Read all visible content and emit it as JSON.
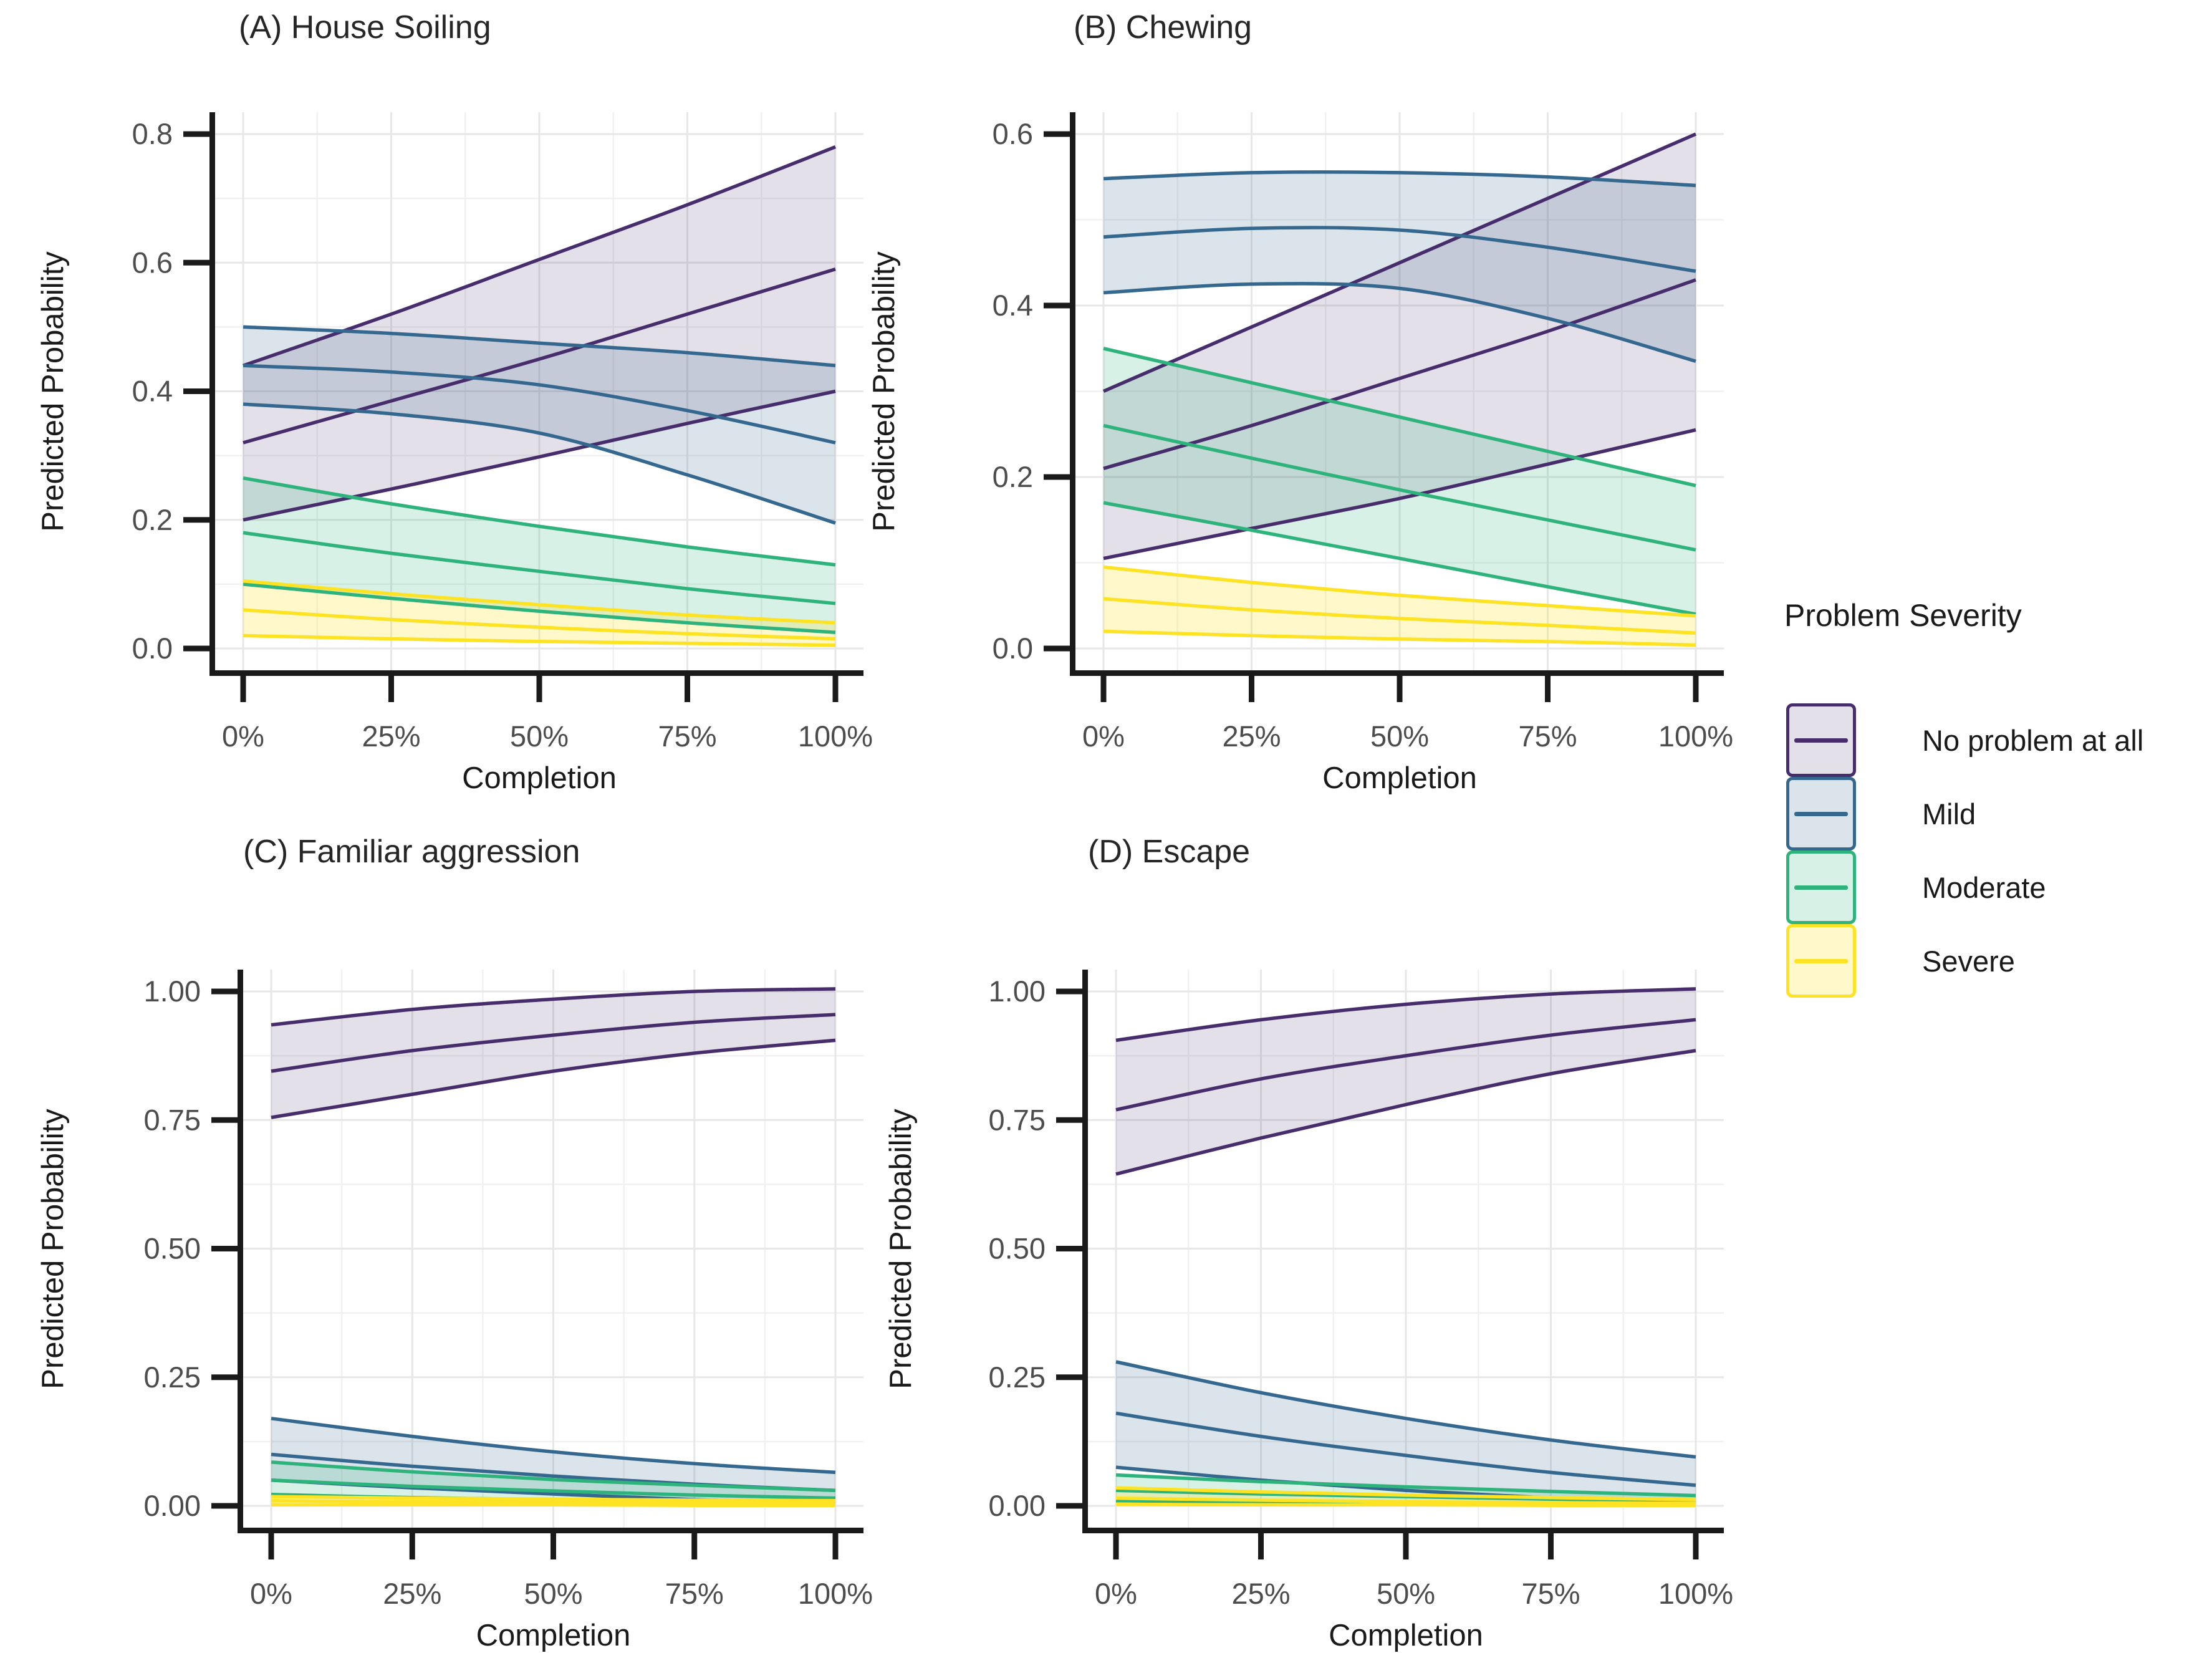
{
  "figure": {
    "background": "#ffffff"
  },
  "legend": {
    "title": "Problem Severity",
    "items": [
      {
        "label": "No problem at all",
        "line_color": "#472d6b",
        "fill_color": "rgba(71,45,107,0.15)"
      },
      {
        "label": "Mild",
        "line_color": "#35688e",
        "fill_color": "rgba(53,104,142,0.18)"
      },
      {
        "label": "Moderate",
        "line_color": "#2eb37c",
        "fill_color": "rgba(46,179,124,0.19)"
      },
      {
        "label": "Severe",
        "line_color": "#fde324",
        "fill_color": "rgba(253,227,36,0.24)"
      }
    ]
  },
  "chart_data": [
    {
      "id": "A",
      "type": "line",
      "title": "(A) House Soiling",
      "xlabel": "Completion",
      "ylabel": "Predicted Probability",
      "x": [
        0,
        25,
        50,
        75,
        100
      ],
      "xtick_labels": [
        "0%",
        "25%",
        "50%",
        "75%",
        "100%"
      ],
      "ytick_values": [
        0,
        0.2,
        0.4,
        0.6,
        0.8
      ],
      "ytick_labels": [
        "0.0",
        "0.2",
        "0.4",
        "0.6",
        "0.8"
      ],
      "y_top": 0.8,
      "y_minor_step": 0.1,
      "grid": true,
      "legend_position": "right",
      "series": [
        {
          "name": "No problem at all",
          "upper": [
            0.44,
            0.52,
            0.605,
            0.69,
            0.78
          ],
          "mid": [
            0.32,
            0.385,
            0.45,
            0.52,
            0.59
          ],
          "lower": [
            0.2,
            0.248,
            0.298,
            0.35,
            0.4
          ]
        },
        {
          "name": "Mild",
          "upper": [
            0.5,
            0.49,
            0.475,
            0.46,
            0.44
          ],
          "mid": [
            0.44,
            0.43,
            0.41,
            0.37,
            0.32
          ],
          "lower": [
            0.38,
            0.365,
            0.335,
            0.27,
            0.195
          ]
        },
        {
          "name": "Moderate",
          "upper": [
            0.265,
            0.225,
            0.19,
            0.158,
            0.13
          ],
          "mid": [
            0.18,
            0.148,
            0.12,
            0.093,
            0.07
          ],
          "lower": [
            0.1,
            0.078,
            0.058,
            0.04,
            0.025
          ]
        },
        {
          "name": "Severe",
          "upper": [
            0.105,
            0.085,
            0.068,
            0.052,
            0.04
          ],
          "mid": [
            0.06,
            0.045,
            0.033,
            0.023,
            0.015
          ],
          "lower": [
            0.02,
            0.015,
            0.011,
            0.008,
            0.005
          ]
        }
      ]
    },
    {
      "id": "B",
      "type": "line",
      "title": "(B) Chewing",
      "xlabel": "Completion",
      "ylabel": "Predicted Probability",
      "x": [
        0,
        25,
        50,
        75,
        100
      ],
      "xtick_labels": [
        "0%",
        "25%",
        "50%",
        "75%",
        "100%"
      ],
      "ytick_values": [
        0,
        0.2,
        0.4,
        0.6
      ],
      "ytick_labels": [
        "0.0",
        "0.2",
        "0.4",
        "0.6"
      ],
      "y_top": 0.6,
      "y_minor_step": 0.1,
      "grid": true,
      "series": [
        {
          "name": "No problem at all",
          "upper": [
            0.3,
            0.375,
            0.45,
            0.525,
            0.6
          ],
          "mid": [
            0.21,
            0.26,
            0.315,
            0.37,
            0.43
          ],
          "lower": [
            0.105,
            0.14,
            0.175,
            0.215,
            0.255
          ]
        },
        {
          "name": "Mild",
          "upper": [
            0.548,
            0.555,
            0.555,
            0.55,
            0.54
          ],
          "mid": [
            0.48,
            0.49,
            0.488,
            0.468,
            0.44
          ],
          "lower": [
            0.415,
            0.425,
            0.42,
            0.385,
            0.335
          ]
        },
        {
          "name": "Moderate",
          "upper": [
            0.35,
            0.31,
            0.27,
            0.23,
            0.19
          ],
          "mid": [
            0.26,
            0.222,
            0.185,
            0.15,
            0.115
          ],
          "lower": [
            0.17,
            0.138,
            0.105,
            0.072,
            0.04
          ]
        },
        {
          "name": "Severe",
          "upper": [
            0.095,
            0.077,
            0.062,
            0.05,
            0.038
          ],
          "mid": [
            0.058,
            0.045,
            0.035,
            0.027,
            0.018
          ],
          "lower": [
            0.02,
            0.015,
            0.011,
            0.008,
            0.004
          ]
        }
      ]
    },
    {
      "id": "C",
      "type": "line",
      "title": "(C) Familiar aggression",
      "xlabel": "Completion",
      "ylabel": "Predicted Probability",
      "x": [
        0,
        25,
        50,
        75,
        100
      ],
      "xtick_labels": [
        "0%",
        "25%",
        "50%",
        "75%",
        "100%"
      ],
      "ytick_values": [
        0,
        0.25,
        0.5,
        0.75,
        1.0
      ],
      "ytick_labels": [
        "0.00",
        "0.25",
        "0.50",
        "0.75",
        "1.00"
      ],
      "y_top": 1.0,
      "y_minor_step": 0.125,
      "grid": true,
      "series": [
        {
          "name": "No problem at all",
          "upper": [
            0.935,
            0.965,
            0.985,
            1.0,
            1.005
          ],
          "mid": [
            0.845,
            0.885,
            0.915,
            0.94,
            0.955
          ],
          "lower": [
            0.755,
            0.8,
            0.845,
            0.88,
            0.905
          ]
        },
        {
          "name": "Mild",
          "upper": [
            0.17,
            0.135,
            0.105,
            0.082,
            0.065
          ],
          "mid": [
            0.1,
            0.077,
            0.058,
            0.042,
            0.03
          ],
          "lower": [
            0.05,
            0.035,
            0.023,
            0.012,
            0.005
          ]
        },
        {
          "name": "Moderate",
          "upper": [
            0.085,
            0.066,
            0.051,
            0.04,
            0.03
          ],
          "mid": [
            0.05,
            0.038,
            0.029,
            0.021,
            0.015
          ],
          "lower": [
            0.022,
            0.016,
            0.012,
            0.009,
            0.006
          ]
        },
        {
          "name": "Severe",
          "upper": [
            0.018,
            0.015,
            0.013,
            0.011,
            0.01
          ],
          "mid": [
            0.01,
            0.008,
            0.007,
            0.006,
            0.005
          ],
          "lower": [
            0.002,
            0.002,
            0.002,
            0.001,
            0.001
          ]
        }
      ]
    },
    {
      "id": "D",
      "type": "line",
      "title": "(D) Escape",
      "xlabel": "Completion",
      "ylabel": "Predicted Probability",
      "x": [
        0,
        25,
        50,
        75,
        100
      ],
      "xtick_labels": [
        "0%",
        "25%",
        "50%",
        "75%",
        "100%"
      ],
      "ytick_values": [
        0,
        0.25,
        0.5,
        0.75,
        1.0
      ],
      "ytick_labels": [
        "0.00",
        "0.25",
        "0.50",
        "0.75",
        "1.00"
      ],
      "y_top": 1.0,
      "y_minor_step": 0.125,
      "grid": true,
      "series": [
        {
          "name": "No problem at all",
          "upper": [
            0.905,
            0.945,
            0.975,
            0.995,
            1.005
          ],
          "mid": [
            0.77,
            0.83,
            0.875,
            0.915,
            0.945
          ],
          "lower": [
            0.645,
            0.715,
            0.78,
            0.84,
            0.885
          ]
        },
        {
          "name": "Mild",
          "upper": [
            0.28,
            0.22,
            0.17,
            0.128,
            0.095
          ],
          "mid": [
            0.18,
            0.135,
            0.098,
            0.065,
            0.04
          ],
          "lower": [
            0.075,
            0.05,
            0.03,
            0.015,
            0.005
          ]
        },
        {
          "name": "Moderate",
          "upper": [
            0.06,
            0.047,
            0.037,
            0.028,
            0.02
          ],
          "mid": [
            0.03,
            0.023,
            0.018,
            0.013,
            0.01
          ],
          "lower": [
            0.01,
            0.007,
            0.005,
            0.004,
            0.003
          ]
        },
        {
          "name": "Severe",
          "upper": [
            0.035,
            0.027,
            0.021,
            0.016,
            0.012
          ],
          "mid": [
            0.015,
            0.011,
            0.008,
            0.006,
            0.005
          ],
          "lower": [
            0.003,
            0.002,
            0.002,
            0.001,
            0.001
          ]
        }
      ]
    }
  ]
}
